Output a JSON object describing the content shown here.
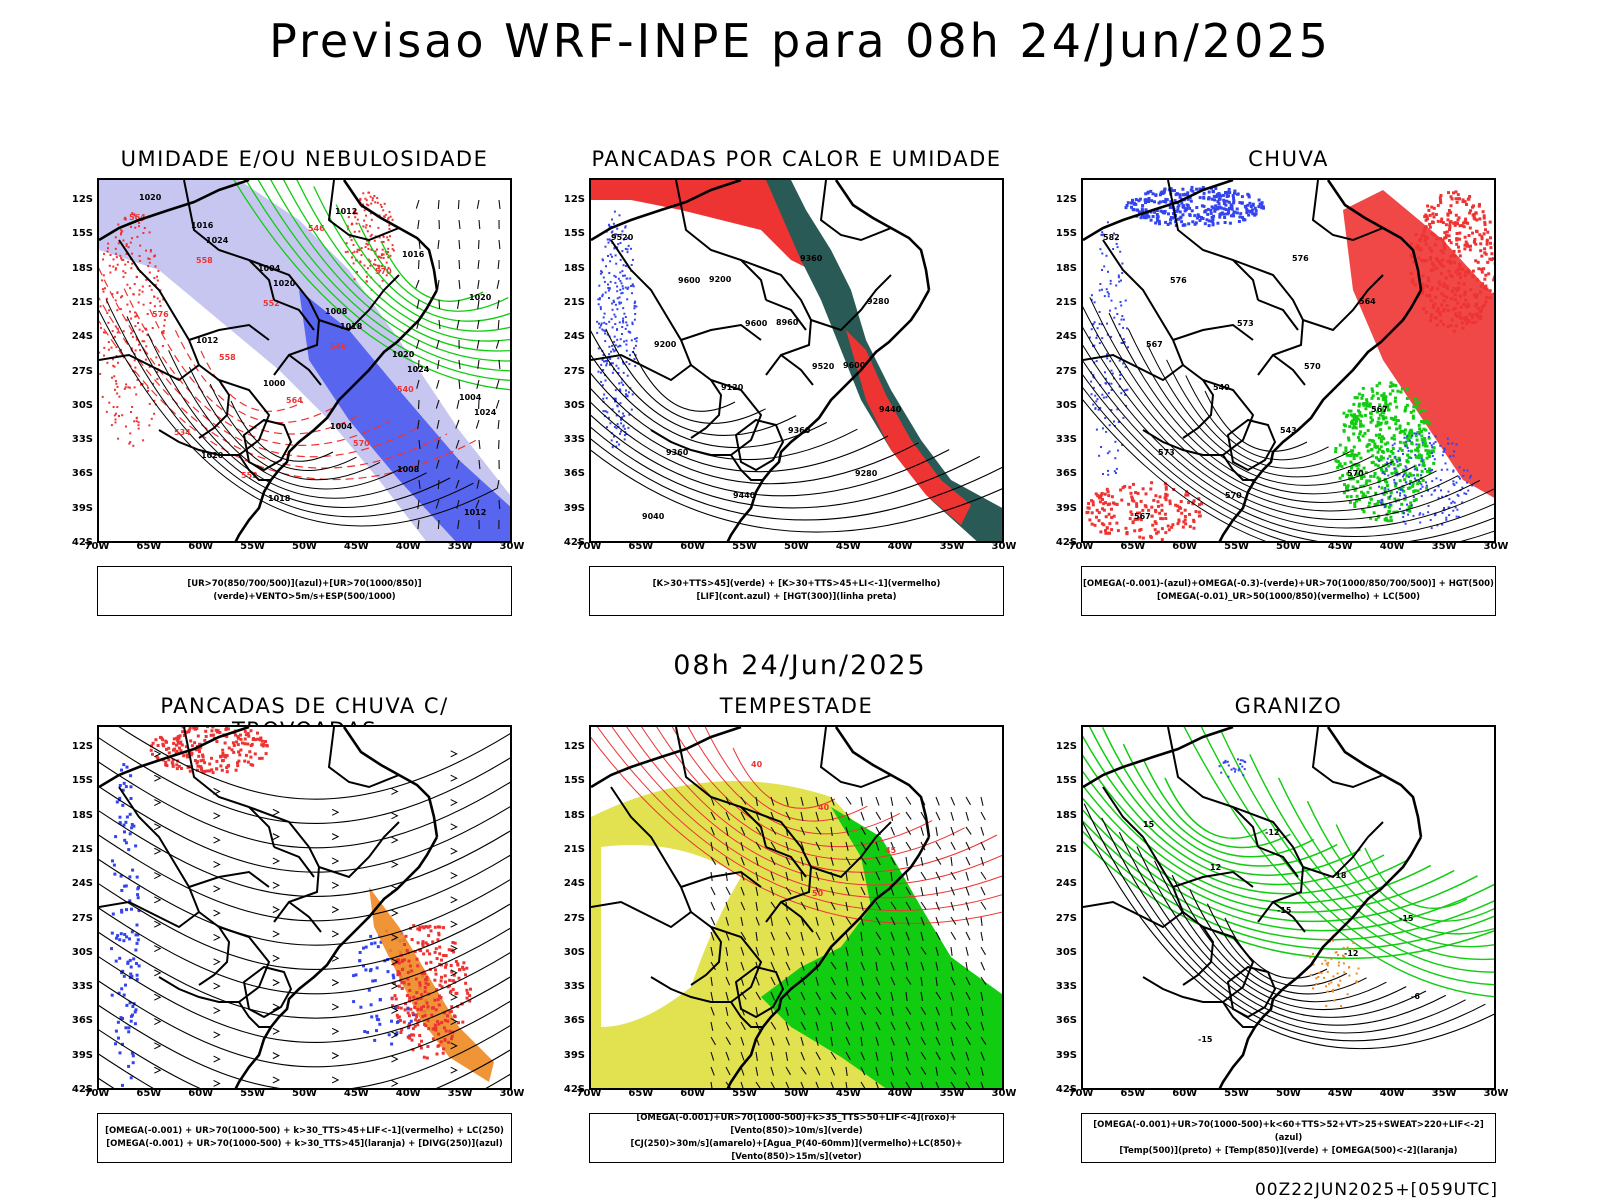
{
  "title": "Previsao WRF-INPE  para 08h 24/Jun/2025",
  "subtitle": "08h 24/Jun/2025",
  "footer": "00Z22JUN2025+[059UTC]",
  "axes": {
    "latitudes": [
      "12S",
      "15S",
      "18S",
      "21S",
      "24S",
      "27S",
      "30S",
      "33S",
      "36S",
      "39S",
      "42S"
    ],
    "longitudes": [
      "70W",
      "65W",
      "60W",
      "55W",
      "50W",
      "45W",
      "40W",
      "35W",
      "30W"
    ]
  },
  "colors": {
    "blue": "#3344ee",
    "lavender": "#b8b8ee",
    "green": "#11cc11",
    "red": "#ee3333",
    "orange": "#ee8822",
    "yellow": "#dddd33",
    "darkteal": "#2a5a55"
  },
  "panels": [
    {
      "id": "umidade",
      "title": "UMIDADE E/OU NEBULOSIDADE",
      "legend": [
        "[UR>70(850/700/500)](azul)+[UR>70(1000/850)](verde)+VENTO>5m/s+ESP(500/1000)"
      ],
      "contour_labels": [
        "1020",
        "1024",
        "1020",
        "1018",
        "1024",
        "1024",
        "1020",
        "1018",
        "1012",
        "1016",
        "1020",
        "1012",
        "1000",
        "1004",
        "1008",
        "1012",
        "1016",
        "1004",
        "1008",
        "1020",
        "1004",
        "564",
        "558",
        "552",
        "546",
        "540",
        "534",
        "552",
        "546",
        "570",
        "576",
        "558",
        "564",
        "570"
      ]
    },
    {
      "id": "pancadas-calor",
      "title": "PANCADAS POR CALOR E UMIDADE",
      "legend": [
        "[K>30+TTS>45](verde) + [K>30+TTS>45+LI<-1](vermelho)",
        "[LIF](cont.azul) + [HGT(300)](linha preta)"
      ],
      "contour_labels": [
        "9520",
        "9600",
        "9600",
        "9520",
        "9440",
        "9360",
        "9440",
        "9360",
        "9280",
        "9200",
        "9120",
        "9360",
        "9280",
        "9040",
        "9200",
        "8960",
        "9600"
      ]
    },
    {
      "id": "chuva",
      "title": "CHUVA",
      "legend": [
        "[OMEGA(-0.001)-(azul)+OMEGA(-0.3)-(verde)+UR>70(1000/850/700/500)] + HGT(500)",
        "[OMEGA(-0.01)_UR>50(1000/850)(vermelho) + LC(500)"
      ],
      "contour_labels": [
        "582",
        "576",
        "573",
        "570",
        "567",
        "573",
        "570",
        "576",
        "564",
        "567",
        "540",
        "543",
        "570",
        "567"
      ]
    },
    {
      "id": "pancadas-trovoadas",
      "title": "PANCADAS DE CHUVA C/ TROVOADAS",
      "legend": [
        "[OMEGA(-0.001) + UR>70(1000-500) + k>30_TTS>45+LIF<-1](vermelho) + LC(250)",
        "[OMEGA(-0.001) + UR>70(1000-500) + k>30_TTS>45](laranja) + [DIVG(250)](azul)"
      ],
      "contour_labels": []
    },
    {
      "id": "tempestade",
      "title": "TEMPESTADE",
      "legend": [
        "[OMEGA(-0.001)+UR>70(1000-500)+k>35_TTS>50+LIF<-4](roxo)+[Vento(850)>10m/s](verde)",
        "[CJ(250)>30m/s](amarelo)+[Agua_P(40-60mm)](vermelho)+LC(850)+[Vento(850)>15m/s](vetor)"
      ],
      "contour_labels": [
        "40",
        "40",
        "45",
        "50"
      ]
    },
    {
      "id": "granizo",
      "title": "GRANIZO",
      "legend": [
        "[OMEGA(-0.001)+UR>70(1000-500)+k<60+TTS>52+VT>25+SWEAT>220+LIF<-2](azul)",
        "[Temp(500)](preto) + [Temp(850)](verde) + [OMEGA(500)<-2](laranja)"
      ],
      "contour_labels": [
        "15",
        "12",
        "-15",
        "-12",
        "-6",
        "-15",
        "-12",
        "-18",
        "-15"
      ]
    }
  ]
}
